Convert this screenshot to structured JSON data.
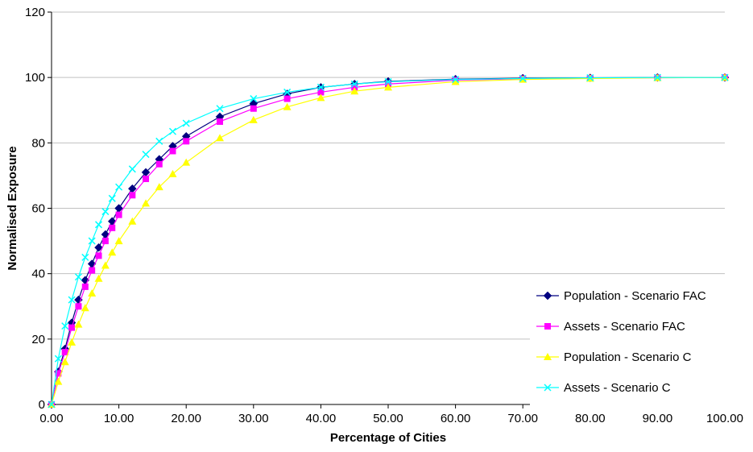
{
  "chart_data": {
    "type": "line",
    "title": "",
    "xlabel": "Percentage of Cities",
    "ylabel": "Normalised Exposure",
    "xlim": [
      0,
      100
    ],
    "ylim": [
      0,
      120
    ],
    "x_tick_labels": [
      "0.00",
      "10.00",
      "20.00",
      "30.00",
      "40.00",
      "50.00",
      "60.00",
      "70.00",
      "80.00",
      "90.00",
      "100.00"
    ],
    "y_tick_labels": [
      "0",
      "20",
      "40",
      "60",
      "80",
      "100",
      "120"
    ],
    "grid": "horizontal",
    "legend_position": "bottom-right",
    "x": [
      0,
      1,
      2,
      3,
      4,
      5,
      6,
      7,
      8,
      9,
      10,
      12,
      14,
      16,
      18,
      20,
      25,
      30,
      35,
      40,
      45,
      50,
      60,
      70,
      80,
      90,
      100
    ],
    "series": [
      {
        "name": "Population - Scenario FAC",
        "color": "#000080",
        "marker": "diamond",
        "values": [
          0,
          10,
          17,
          25,
          32,
          38,
          43,
          48,
          52,
          56,
          60,
          66,
          71,
          75,
          79,
          82,
          88,
          92,
          95,
          97,
          98,
          98.8,
          99.5,
          99.8,
          99.9,
          100,
          100
        ]
      },
      {
        "name": "Assets - Scenario FAC",
        "color": "#ff00ff",
        "marker": "square",
        "values": [
          0,
          9.5,
          16,
          23.5,
          30,
          36,
          41,
          45.5,
          50,
          54,
          58,
          64,
          69,
          73.5,
          77.5,
          80.5,
          86.5,
          90.5,
          93.5,
          95.5,
          97,
          98,
          99.2,
          99.6,
          99.8,
          99.9,
          100
        ]
      },
      {
        "name": "Population - Scenario C",
        "color": "#ffff00",
        "marker": "triangle",
        "values": [
          0,
          7,
          13,
          19,
          24.5,
          29.5,
          34,
          38.5,
          42.5,
          46.5,
          50,
          56,
          61.5,
          66.5,
          70.5,
          74,
          81.5,
          87,
          91,
          93.8,
          95.8,
          97,
          98.7,
          99.4,
          99.7,
          99.9,
          100
        ]
      },
      {
        "name": "Assets - Scenario C",
        "color": "#00ffff",
        "marker": "x",
        "values": [
          0,
          14,
          24,
          32,
          39,
          45,
          50,
          55,
          59,
          63,
          66.5,
          72,
          76.5,
          80.5,
          83.5,
          86,
          90.5,
          93.5,
          95.5,
          97,
          98,
          98.7,
          99.4,
          99.7,
          99.9,
          100,
          100
        ]
      }
    ]
  }
}
